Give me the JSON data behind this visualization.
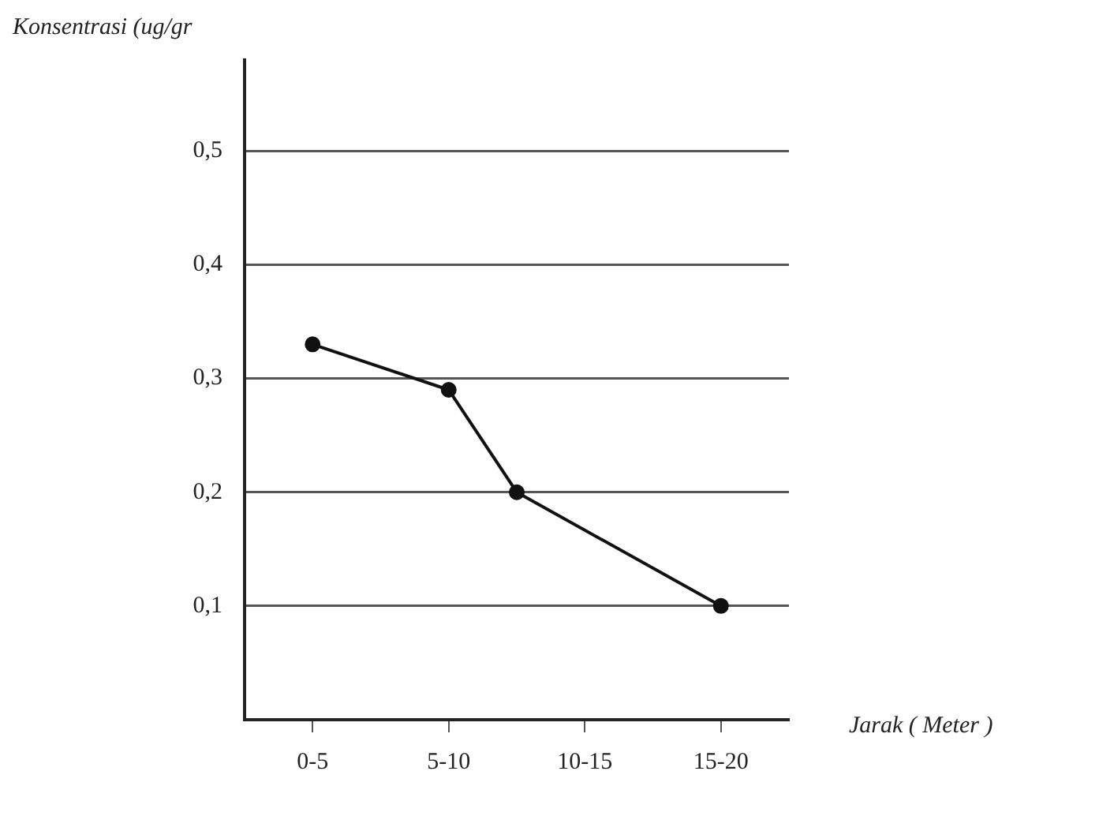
{
  "chart_data": {
    "type": "line",
    "xlabel": "Jarak ( Meter )",
    "ylabel": "Konsentrasi (ug/gr",
    "categories": [
      null,
      "0-5",
      null,
      "5-10",
      null,
      "10-15",
      null,
      "15-20",
      null
    ],
    "values": [
      null,
      0.33,
      null,
      0.29,
      0.2,
      null,
      null,
      0.1,
      null
    ],
    "color": "#111111",
    "marker": "circle",
    "line_style": "solid",
    "grid": "y",
    "legend": false,
    "ylim": [
      0,
      0.58
    ],
    "yticks": [
      {
        "value": 0.1,
        "label": "0,1"
      },
      {
        "value": 0.2,
        "label": "0,2"
      },
      {
        "value": 0.3,
        "label": "0,3"
      },
      {
        "value": 0.4,
        "label": "0,4"
      },
      {
        "value": 0.5,
        "label": "0,5"
      }
    ]
  }
}
